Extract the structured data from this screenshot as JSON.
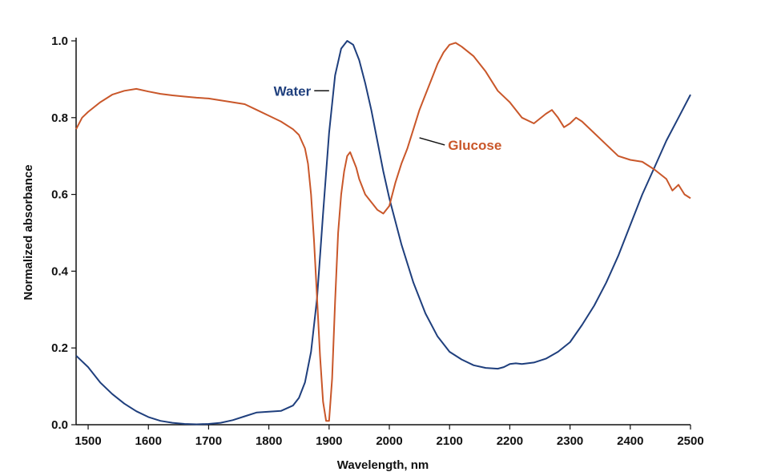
{
  "chart_data": {
    "type": "line",
    "title": "",
    "xlabel": "Wavelength, nm",
    "ylabel": "Normalized absorbance",
    "xlim": [
      1480,
      2500
    ],
    "ylim": [
      0,
      1.0
    ],
    "xticks": [
      1500,
      1600,
      1700,
      1800,
      1900,
      2000,
      2100,
      2200,
      2300,
      2400,
      2500
    ],
    "yticks": [
      0.0,
      0.2,
      0.4,
      0.6,
      0.8,
      1.0
    ],
    "xtick_labels": [
      "1500",
      "1600",
      "1700",
      "1800",
      "1900",
      "2000",
      "2100",
      "2200",
      "2300",
      "2400",
      "2500"
    ],
    "ytick_labels": [
      "0.0",
      "0.2",
      "0.4",
      "0.6",
      "0.8",
      "1.0"
    ],
    "grid": false,
    "legend": "none",
    "series": [
      {
        "name": "Water",
        "color": "#1f3f7d",
        "x": [
          1480,
          1500,
          1520,
          1540,
          1560,
          1580,
          1600,
          1620,
          1640,
          1660,
          1680,
          1700,
          1720,
          1740,
          1760,
          1780,
          1800,
          1820,
          1840,
          1850,
          1860,
          1870,
          1880,
          1890,
          1900,
          1910,
          1920,
          1930,
          1940,
          1950,
          1960,
          1970,
          1980,
          1990,
          2000,
          2020,
          2040,
          2060,
          2080,
          2100,
          2120,
          2140,
          2160,
          2180,
          2190,
          2200,
          2210,
          2220,
          2240,
          2260,
          2280,
          2300,
          2320,
          2340,
          2360,
          2380,
          2400,
          2420,
          2440,
          2460,
          2480,
          2500
        ],
        "values": [
          0.18,
          0.15,
          0.11,
          0.08,
          0.055,
          0.035,
          0.02,
          0.01,
          0.005,
          0.002,
          0.001,
          0.002,
          0.005,
          0.012,
          0.022,
          0.032,
          0.034,
          0.036,
          0.05,
          0.07,
          0.11,
          0.19,
          0.33,
          0.55,
          0.76,
          0.91,
          0.98,
          1.0,
          0.99,
          0.95,
          0.89,
          0.82,
          0.74,
          0.66,
          0.59,
          0.47,
          0.37,
          0.29,
          0.23,
          0.19,
          0.17,
          0.155,
          0.148,
          0.146,
          0.15,
          0.158,
          0.16,
          0.158,
          0.162,
          0.172,
          0.19,
          0.215,
          0.26,
          0.31,
          0.37,
          0.44,
          0.52,
          0.6,
          0.67,
          0.74,
          0.8,
          0.86
        ]
      },
      {
        "name": "Glucose",
        "color": "#c9572a",
        "x": [
          1480,
          1490,
          1500,
          1520,
          1540,
          1560,
          1580,
          1600,
          1620,
          1640,
          1660,
          1680,
          1700,
          1720,
          1740,
          1760,
          1780,
          1800,
          1820,
          1840,
          1850,
          1860,
          1865,
          1870,
          1875,
          1880,
          1885,
          1890,
          1895,
          1900,
          1905,
          1910,
          1915,
          1920,
          1925,
          1930,
          1935,
          1940,
          1945,
          1950,
          1960,
          1970,
          1980,
          1990,
          2000,
          2010,
          2020,
          2030,
          2040,
          2050,
          2060,
          2070,
          2080,
          2090,
          2100,
          2110,
          2120,
          2140,
          2160,
          2180,
          2200,
          2220,
          2240,
          2260,
          2270,
          2280,
          2290,
          2300,
          2310,
          2320,
          2340,
          2360,
          2380,
          2400,
          2420,
          2440,
          2460,
          2470,
          2480,
          2490,
          2500
        ],
        "values": [
          0.77,
          0.8,
          0.815,
          0.84,
          0.86,
          0.87,
          0.875,
          0.868,
          0.862,
          0.858,
          0.855,
          0.852,
          0.85,
          0.845,
          0.84,
          0.835,
          0.82,
          0.805,
          0.79,
          0.77,
          0.755,
          0.72,
          0.68,
          0.6,
          0.48,
          0.33,
          0.18,
          0.06,
          0.01,
          0.01,
          0.12,
          0.32,
          0.5,
          0.6,
          0.66,
          0.7,
          0.71,
          0.69,
          0.67,
          0.64,
          0.6,
          0.58,
          0.56,
          0.55,
          0.57,
          0.63,
          0.68,
          0.72,
          0.77,
          0.82,
          0.86,
          0.9,
          0.94,
          0.97,
          0.99,
          0.995,
          0.985,
          0.96,
          0.92,
          0.87,
          0.84,
          0.8,
          0.785,
          0.81,
          0.82,
          0.8,
          0.775,
          0.785,
          0.8,
          0.79,
          0.76,
          0.73,
          0.7,
          0.69,
          0.685,
          0.665,
          0.64,
          0.61,
          0.625,
          0.6,
          0.59
        ]
      }
    ],
    "annotations": [
      {
        "text": "Water",
        "series": "Water",
        "x": 1900,
        "y": 0.87,
        "anchor_x": 1870,
        "color": "#1f3f7d"
      },
      {
        "text": "Glucose",
        "series": "Glucose",
        "x": 2050,
        "y": 0.735,
        "anchor_x": 2100,
        "color": "#c9572a"
      }
    ]
  }
}
